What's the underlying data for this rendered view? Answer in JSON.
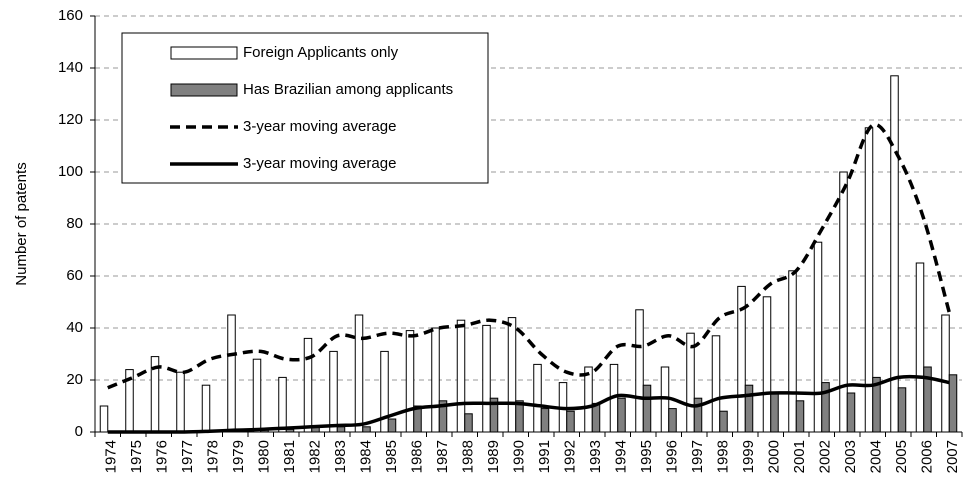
{
  "chart_data": {
    "type": "bar",
    "y_label": "Number of patents",
    "categories": [
      "1974",
      "1975",
      "1976",
      "1977",
      "1978",
      "1979",
      "1980",
      "1981",
      "1982",
      "1983",
      "1984",
      "1985",
      "1986",
      "1987",
      "1988",
      "1989",
      "1990",
      "1991",
      "1992",
      "1993",
      "1994",
      "1995",
      "1996",
      "1997",
      "1998",
      "1999",
      "2000",
      "2001",
      "2002",
      "2003",
      "2004",
      "2005",
      "2006",
      "2007"
    ],
    "series": [
      {
        "name": "Foreign Applicants only",
        "type": "bar",
        "color": "#ffffff",
        "values": [
          10,
          24,
          29,
          23,
          18,
          45,
          28,
          21,
          36,
          31,
          45,
          31,
          39,
          40,
          43,
          41,
          44,
          26,
          19,
          25,
          26,
          47,
          25,
          38,
          37,
          56,
          52,
          62,
          73,
          100,
          117,
          137,
          65,
          45
        ]
      },
      {
        "name": "Has Brazilian among applicants",
        "type": "bar",
        "color": "#808080",
        "values": [
          0,
          0,
          0,
          0,
          0,
          1,
          1,
          1,
          2,
          2,
          2,
          5,
          10,
          12,
          7,
          13,
          12,
          9,
          8,
          11,
          13,
          18,
          9,
          13,
          8,
          18,
          15,
          12,
          19,
          15,
          21,
          17,
          25,
          22
        ]
      },
      {
        "name": "3-year moving average",
        "type": "line",
        "dashed": true,
        "color": "#000000",
        "values": [
          17,
          21,
          25,
          23,
          28,
          30,
          31,
          28,
          29,
          37,
          36,
          38,
          37,
          40,
          41,
          43,
          40,
          30,
          23,
          23,
          33,
          33,
          37,
          33,
          44,
          48,
          57,
          62,
          78,
          96,
          118,
          106,
          82,
          46
        ]
      },
      {
        "name": "3-year moving average",
        "type": "line",
        "dashed": false,
        "color": "#000000",
        "values": [
          0,
          0,
          0,
          0,
          0.3,
          0.7,
          1,
          1.5,
          2,
          2.5,
          3,
          6,
          9,
          10,
          11,
          11,
          11,
          10,
          9,
          10,
          14,
          13,
          13,
          10,
          13,
          14,
          15,
          15,
          15,
          18,
          18,
          21,
          21,
          19
        ]
      }
    ],
    "ylim": [
      0,
      160
    ],
    "yticks": [
      0,
      20,
      40,
      60,
      80,
      100,
      120,
      140,
      160
    ],
    "grid": true
  }
}
